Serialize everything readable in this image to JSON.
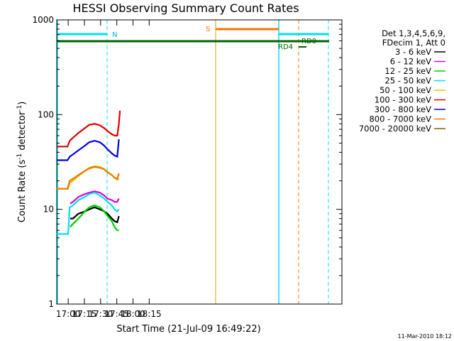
{
  "chart_data": {
    "type": "line",
    "title": "HESSI Observing Summary Count Rates",
    "xlabel": "Start Time (21-Jul-09 16:49:22)",
    "ylabel_prefix": "Count Rate (s",
    "ylabel_sup1": "-1",
    "ylabel_mid": " detector",
    "ylabel_sup2": "-1",
    "ylabel_suffix": ")",
    "x_unit": "minutes since 16:49:22",
    "xlim": [
      0,
      264
    ],
    "ylim": [
      1,
      1000
    ],
    "log_y": true,
    "grid": false,
    "legend_position": "right",
    "x_ticks": [
      {
        "label": "17:00",
        "value": 10.6
      },
      {
        "label": "17:15",
        "value": 25.6
      },
      {
        "label": "17:30",
        "value": 40.6
      },
      {
        "label": "17:45",
        "value": 55.6
      },
      {
        "label": "18:00",
        "value": 70.6
      },
      {
        "label": "18:15",
        "value": 85.6
      }
    ],
    "y_ticks": [
      {
        "label": "1",
        "value": 1
      },
      {
        "label": "10",
        "value": 10
      },
      {
        "label": "100",
        "value": 100
      },
      {
        "label": "1000",
        "value": 1000
      }
    ],
    "legend_header": [
      "Det 1,3,4,5,6,9,",
      "FDecim 1, Att 0"
    ],
    "series": [
      {
        "name": "3 - 6 keV",
        "color": "#000000",
        "x": [
          12.5,
          15,
          20,
          26,
          30,
          35,
          40,
          44,
          47,
          51,
          53.5,
          56,
          57.5
        ],
        "y": [
          8,
          8,
          9,
          9.5,
          10,
          10.5,
          10,
          9.5,
          9,
          8,
          7.5,
          7.3,
          8.5
        ]
      },
      {
        "name": "6 - 12 keV",
        "color": "#e000e0",
        "x": [
          12.5,
          15,
          20,
          26,
          30,
          35,
          40,
          44,
          47,
          51,
          53.5,
          56,
          57.5
        ],
        "y": [
          11.5,
          12,
          13.5,
          14.5,
          15,
          15.5,
          15,
          14,
          13,
          12.5,
          12,
          12,
          13
        ]
      },
      {
        "name": "12 - 25 keV",
        "color": "#00d000",
        "x": [
          12.5,
          15,
          20,
          26,
          30,
          35,
          40,
          44,
          47,
          51,
          53.5,
          56,
          57.5
        ],
        "y": [
          6.5,
          7,
          8,
          9.5,
          10.5,
          11,
          10.5,
          9.5,
          8.5,
          7.5,
          6.5,
          6,
          6
        ]
      },
      {
        "name": "25 - 50 keV",
        "color": "#00e0f0",
        "x": [
          0,
          10.5,
          12,
          15,
          20,
          26,
          30,
          35,
          40,
          44,
          47,
          51,
          53.5,
          56,
          57.5
        ],
        "y": [
          5.5,
          5.5,
          10.5,
          11,
          12.5,
          13.5,
          14.5,
          15,
          14,
          13,
          12,
          11,
          10,
          9.5,
          10
        ]
      },
      {
        "name": "50 - 100 keV",
        "color": "#d8c800",
        "x": [
          0,
          10.5,
          12,
          15,
          20,
          26,
          30,
          35,
          40,
          44,
          47,
          51,
          53.5,
          56,
          57.5
        ],
        "y": [
          16.5,
          16.5,
          19,
          20,
          22.5,
          25.5,
          27.5,
          28.5,
          28,
          26.5,
          25,
          23,
          21.5,
          20.5,
          21
        ]
      },
      {
        "name": "100 - 300 keV",
        "color": "#e00000",
        "x": [
          0,
          10,
          12,
          15,
          20,
          26,
          30,
          35,
          40,
          44,
          47,
          51,
          53.5,
          56,
          57.5,
          58.5
        ],
        "y": [
          46,
          46,
          53,
          57,
          64,
          72,
          78,
          80,
          77,
          72,
          67,
          62,
          60,
          60,
          80,
          110
        ]
      },
      {
        "name": "300 - 800 keV",
        "color": "#0000e8",
        "x": [
          0,
          10,
          12,
          15,
          20,
          26,
          30,
          35,
          40,
          44,
          47,
          51,
          53.5,
          56,
          57.5
        ],
        "y": [
          33,
          33,
          36,
          38,
          42,
          47,
          51,
          53,
          51,
          47,
          43,
          39,
          37,
          36,
          55
        ]
      },
      {
        "name": "800 - 7000 keV",
        "color": "#f07800",
        "x": [
          0,
          10,
          12,
          15,
          20,
          26,
          30,
          35,
          40,
          44,
          47,
          51,
          53.5,
          56,
          57.5
        ],
        "y": [
          16.5,
          16.5,
          20,
          21,
          23,
          25.5,
          27,
          28,
          27.5,
          26.5,
          24.5,
          23,
          21.5,
          21,
          24
        ]
      },
      {
        "name": "7000 - 20000 keV",
        "color": "#806000",
        "x": [],
        "y": []
      }
    ],
    "annotations": [
      "N",
      "S",
      "RD0",
      "RD4"
    ],
    "timestamp": "11-Mar-2010 18:12"
  }
}
